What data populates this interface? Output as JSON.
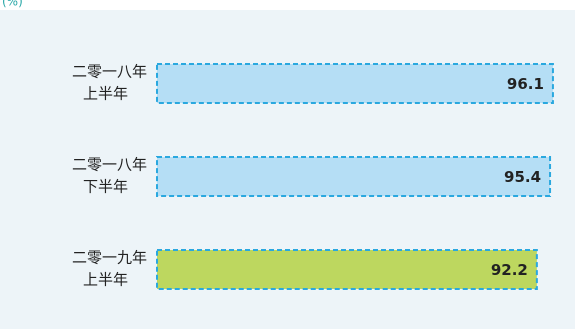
{
  "chart_data": {
    "type": "bar",
    "orientation": "horizontal",
    "unit_label": "(%)",
    "categories": [
      [
        "二零一八年",
        "上半年"
      ],
      [
        "二零一八年",
        "下半年"
      ],
      [
        "二零一九年",
        "上半年"
      ]
    ],
    "values": [
      96.1,
      95.4,
      92.2
    ],
    "colors": [
      "#b5def5",
      "#b5def5",
      "#bdd75f"
    ],
    "border_color": "#2aa8df"
  }
}
